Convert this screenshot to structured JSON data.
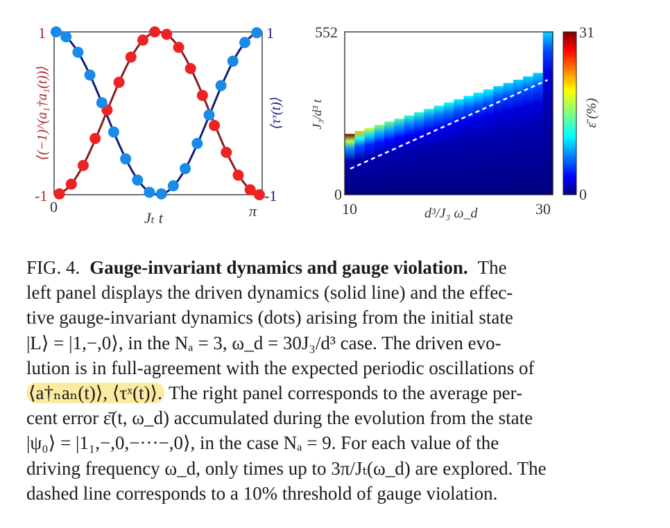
{
  "left_panel": {
    "chart_data": {
      "type": "line",
      "xlabel": "Jₜ t",
      "ylabel_left": "⟨(−1)^(a₁†a₁(t))⟩",
      "ylabel_right": "⟨τˣ(t)⟩",
      "x_ticks": [
        "0",
        "π"
      ],
      "y_ticks_left": [
        "-1",
        "1"
      ],
      "y_ticks_right": [
        "-1",
        "1"
      ],
      "xlim": [
        0,
        3.14159
      ],
      "ylim": [
        -1,
        1
      ],
      "series": [
        {
          "color": "#8b1a1a",
          "values_fn": "-cos(2x)",
          "style": "solid"
        },
        {
          "color": "#0d1d7a",
          "values_fn": "cos(2x)",
          "style": "solid"
        },
        {
          "color": "#ee2222",
          "style": "dots",
          "x": [
            0.08,
            0.26,
            0.44,
            0.62,
            0.8,
            0.98,
            1.16,
            1.34,
            1.52,
            1.7,
            1.88,
            2.06,
            2.24,
            2.42,
            2.6,
            2.78,
            2.96,
            3.1
          ],
          "y": [
            -0.99,
            -0.87,
            -0.64,
            -0.31,
            0.04,
            0.38,
            0.69,
            0.9,
            1.0,
            0.97,
            0.81,
            0.55,
            0.22,
            -0.15,
            -0.48,
            -0.76,
            -0.94,
            -1.0
          ]
        },
        {
          "color": "#1a8ae8",
          "style": "dots",
          "x": [
            0.03,
            0.18,
            0.36,
            0.54,
            0.72,
            0.9,
            1.08,
            1.26,
            1.44,
            1.62,
            1.8,
            1.98,
            2.16,
            2.34,
            2.52,
            2.7,
            2.88,
            3.06
          ],
          "y": [
            1.0,
            0.94,
            0.75,
            0.47,
            0.13,
            -0.23,
            -0.56,
            -0.82,
            -0.97,
            -0.99,
            -0.89,
            -0.68,
            -0.37,
            -0.02,
            0.34,
            0.64,
            0.87,
            0.99
          ]
        }
      ]
    }
  },
  "right_panel": {
    "chart_data": {
      "type": "heatmap",
      "xlabel": "d³/J₃ ω_d",
      "ylabel": "J₃/d³ t",
      "x_ticks": [
        "10",
        "30"
      ],
      "y_ticks": [
        "0",
        "552"
      ],
      "xlim": [
        10,
        30
      ],
      "ylim": [
        0,
        552
      ],
      "colorbar_label": "ε̄ (%)",
      "colorbar_ticks": [
        "0",
        "31"
      ],
      "colorbar_range": [
        0,
        31
      ],
      "dashed_line": {
        "label": "10% threshold",
        "from": [
          10,
          88
        ],
        "to": [
          29.5,
          389
        ]
      },
      "columns": [
        {
          "x": 10,
          "tmax": 206,
          "top": 31
        },
        {
          "x": 11,
          "tmax": 216,
          "top": 22
        },
        {
          "x": 12,
          "tmax": 226,
          "top": 18
        },
        {
          "x": 13,
          "tmax": 237,
          "top": 16
        },
        {
          "x": 14,
          "tmax": 248,
          "top": 15
        },
        {
          "x": 15,
          "tmax": 258,
          "top": 14
        },
        {
          "x": 16,
          "tmax": 269,
          "top": 13
        },
        {
          "x": 17,
          "tmax": 280,
          "top": 13
        },
        {
          "x": 18,
          "tmax": 291,
          "top": 12
        },
        {
          "x": 19,
          "tmax": 302,
          "top": 12
        },
        {
          "x": 20,
          "tmax": 313,
          "top": 12
        },
        {
          "x": 21,
          "tmax": 324,
          "top": 11
        },
        {
          "x": 22,
          "tmax": 335,
          "top": 11
        },
        {
          "x": 23,
          "tmax": 346,
          "top": 11
        },
        {
          "x": 24,
          "tmax": 357,
          "top": 11
        },
        {
          "x": 25,
          "tmax": 368,
          "top": 10
        },
        {
          "x": 26,
          "tmax": 379,
          "top": 10
        },
        {
          "x": 27,
          "tmax": 390,
          "top": 10
        },
        {
          "x": 28,
          "tmax": 401,
          "top": 10
        },
        {
          "x": 29,
          "tmax": 413,
          "top": 10
        },
        {
          "x": 30,
          "tmax": 552,
          "top": 10
        }
      ]
    }
  },
  "caption": {
    "label": "FIG. 4.",
    "title": "Gauge-invariant dynamics and gauge violation.",
    "line1_rest": "The",
    "line2": "left panel displays the driven dynamics (solid line) and the effec-",
    "line3": "tive gauge-invariant dynamics (dots) arising from the initial state",
    "line4": "|L⟩ = |1,−,0⟩, in the Nₐ = 3, ω_d = 30J₃/d³ case. The driven evo-",
    "line5": "lution is in full-agreement with the expected periodic oscillations of",
    "line6_highlight": "⟨a†ₙaₙ(t)⟩, ⟨τˣ(t)⟩.",
    "line6_rest": "The right panel corresponds to the average per-",
    "line7": "cent error ε̄(t, ω_d) accumulated during the evolution from the state",
    "line8": "|ψ₀⟩ = |1₁,−,0,−···−,0⟩, in the case Nₐ = 9. For each value of the",
    "line9": "driving frequency ω_d, only times up to 3π/Jₜ(ω_d) are explored. The",
    "line10": "dashed line corresponds to a 10% threshold of gauge violation."
  }
}
